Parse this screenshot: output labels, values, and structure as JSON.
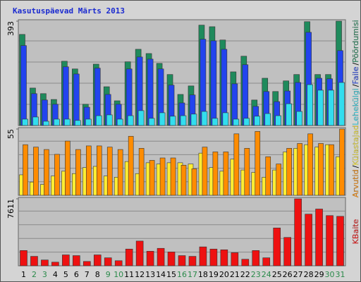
{
  "chart_data": {
    "type": "bar",
    "title": "Kasutuspäevad Märts 2013",
    "categories": [
      "1",
      "2",
      "3",
      "4",
      "5",
      "6",
      "7",
      "8",
      "9",
      "10",
      "11",
      "12",
      "13",
      "14",
      "15",
      "16",
      "17",
      "18",
      "19",
      "20",
      "21",
      "22",
      "23",
      "24",
      "25",
      "26",
      "27",
      "28",
      "29",
      "30",
      "31"
    ],
    "weekend": [
      false,
      true,
      true,
      false,
      false,
      false,
      false,
      false,
      true,
      true,
      false,
      false,
      false,
      false,
      false,
      true,
      true,
      false,
      false,
      false,
      false,
      false,
      true,
      true,
      false,
      false,
      false,
      false,
      false,
      true,
      true
    ],
    "weekday_color": "#000000",
    "weekend_color": "#2a8a4a",
    "legend_separator": "/",
    "panels": [
      {
        "ylim": [
          0,
          393
        ],
        "yticks": [
          393
        ],
        "series": [
          {
            "name": "Pöördumisi",
            "color": "#1f8a5c",
            "values": [
              343,
              141,
              120,
              98,
              242,
              213,
              80,
              231,
              146,
              93,
              240,
              287,
              271,
              234,
              192,
              117,
              149,
              378,
              372,
              322,
              202,
              261,
              96,
              178,
              128,
              168,
              192,
              391,
              192,
              192,
              393
            ]
          },
          {
            "name": "Faile",
            "color": "#2244ee",
            "values": [
              301,
              120,
              96,
              80,
              221,
              194,
              69,
              216,
              117,
              80,
              213,
              258,
              250,
              213,
              152,
              85,
              115,
              325,
              319,
              287,
              157,
              229,
              72,
              128,
              90,
              130,
              162,
              351,
              178,
              176,
              282
            ]
          },
          {
            "name": "Lehekülgi",
            "color": "#33ddee",
            "values": [
              24,
              32,
              16,
              24,
              24,
              19,
              24,
              37,
              40,
              24,
              37,
              56,
              27,
              48,
              35,
              37,
              43,
              53,
              27,
              48,
              24,
              27,
              35,
              45,
              37,
              82,
              53,
              154,
              133,
              133,
              162
            ]
          }
        ]
      },
      {
        "ylim": [
          0,
          55
        ],
        "yticks": [
          55
        ],
        "series": [
          {
            "name": "Külastajad",
            "color": "#ffee33",
            "values": [
              17,
              11,
              9,
              16,
              20,
              18,
              23,
              24,
              16,
              15,
              28,
              18,
              27,
              26,
              27,
              27,
              26,
              35,
              23,
              20,
              30,
              21,
              19,
              15,
              21,
              36,
              39,
              42,
              40,
              42,
              32
            ]
          },
          {
            "name": "Arvutid",
            "color": "#ff8c00",
            "values": [
              42,
              40,
              38,
              34,
              45,
              38,
              41,
              41,
              40,
              38,
              49,
              39,
              29,
              31,
              31,
              25,
              22,
              40,
              36,
              36,
              51,
              39,
              53,
              32,
              26,
              39,
              43,
              51,
              43,
              42,
              55
            ]
          }
        ]
      },
      {
        "ylim": [
          0,
          7611
        ],
        "yticks": [
          7611
        ],
        "series": [
          {
            "name": "KBaite",
            "color": "#ee1111",
            "values": [
              1737,
              1075,
              662,
              414,
              1241,
              1158,
              496,
              1241,
              910,
              579,
              1903,
              2813,
              1655,
              1985,
              1572,
              1158,
              1075,
              2150,
              1903,
              1820,
              1489,
              745,
              1737,
              910,
              4300,
              3225,
              7611,
              5872,
              6451,
              5707,
              5624
            ]
          }
        ]
      }
    ]
  }
}
